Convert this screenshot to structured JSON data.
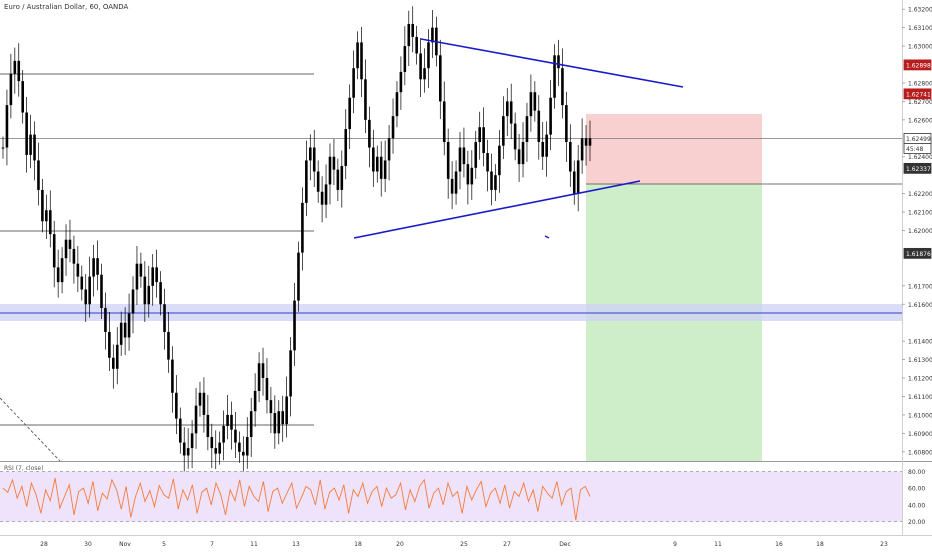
{
  "chart_data": {
    "type": "line",
    "title": "Euro / Australian Dollar, 60, OANDA",
    "instrument": "EURAUD",
    "timeframe": "60",
    "source": "OANDA",
    "x_tick_labels": [
      "28",
      "30",
      "Nov",
      "5",
      "7",
      "11",
      "13",
      "18",
      "20",
      "25",
      "27",
      "Dec",
      "9",
      "11",
      "16",
      "18",
      "23"
    ],
    "y_axis": {
      "range": [
        1.6075,
        1.6325
      ],
      "tick_labels": [
        "1.63200",
        "1.63100",
        "1.63000",
        "1.62800",
        "1.62700",
        "1.62600",
        "1.62400",
        "1.62200",
        "1.62100",
        "1.62000",
        "1.61700",
        "1.61600",
        "1.61400",
        "1.61300",
        "1.61200",
        "1.61100",
        "1.61000",
        "1.60900",
        "1.60800"
      ],
      "tick_values": [
        1.632,
        1.631,
        1.63,
        1.628,
        1.627,
        1.626,
        1.624,
        1.622,
        1.621,
        1.62,
        1.617,
        1.616,
        1.614,
        1.613,
        1.612,
        1.611,
        1.61,
        1.609,
        1.608
      ]
    },
    "price_labels": [
      {
        "text": "1.62898",
        "value": 1.62898,
        "color": "#b71c1c",
        "style": "filled"
      },
      {
        "text": "1.62741",
        "value": 1.62741,
        "color": "#b71c1c",
        "style": "filled"
      },
      {
        "text": "1.62499",
        "value": 1.62499,
        "color": "#333333",
        "style": "outline"
      },
      {
        "text": "45:48",
        "value": 1.62445,
        "color": "#333333",
        "style": "outline"
      },
      {
        "text": "1.62337",
        "value": 1.62337,
        "color": "#333333",
        "style": "filled"
      },
      {
        "text": "1.61876",
        "value": 1.61876,
        "color": "#333333",
        "style": "filled"
      }
    ],
    "price_series": {
      "name": "EURAUD close",
      "values": [
        1.6245,
        1.6268,
        1.6285,
        1.6292,
        1.6281,
        1.6264,
        1.6241,
        1.6252,
        1.6238,
        1.6222,
        1.6205,
        1.6211,
        1.6198,
        1.618,
        1.6172,
        1.6185,
        1.6195,
        1.619,
        1.6182,
        1.6175,
        1.6168,
        1.616,
        1.6175,
        1.6185,
        1.6176,
        1.6158,
        1.6145,
        1.6131,
        1.6125,
        1.6138,
        1.615,
        1.6142,
        1.6155,
        1.6168,
        1.6182,
        1.6175,
        1.616,
        1.617,
        1.618,
        1.6172,
        1.616,
        1.6145,
        1.613,
        1.6112,
        1.6098,
        1.6085,
        1.6078,
        1.6082,
        1.609,
        1.6105,
        1.6112,
        1.61,
        1.6088,
        1.6082,
        1.6079,
        1.6085,
        1.6094,
        1.61,
        1.6092,
        1.6085,
        1.608,
        1.6078,
        1.6088,
        1.6102,
        1.6113,
        1.6128,
        1.612,
        1.6108,
        1.6101,
        1.609,
        1.6102,
        1.6095,
        1.611,
        1.6135,
        1.6162,
        1.6188,
        1.6215,
        1.6238,
        1.6245,
        1.6232,
        1.6221,
        1.6214,
        1.6225,
        1.624,
        1.6233,
        1.6222,
        1.6235,
        1.6255,
        1.6272,
        1.6288,
        1.6302,
        1.6282,
        1.626,
        1.6245,
        1.6232,
        1.624,
        1.6228,
        1.6238,
        1.625,
        1.6262,
        1.6275,
        1.6286,
        1.63,
        1.6312,
        1.6305,
        1.6296,
        1.6282,
        1.6288,
        1.6302,
        1.631,
        1.6295,
        1.627,
        1.6248,
        1.6228,
        1.622,
        1.6232,
        1.6245,
        1.6236,
        1.6225,
        1.6234,
        1.6248,
        1.6256,
        1.6242,
        1.6232,
        1.6222,
        1.623,
        1.6246,
        1.6262,
        1.627,
        1.6258,
        1.6244,
        1.6236,
        1.6248,
        1.6262,
        1.6275,
        1.6265,
        1.6248,
        1.624,
        1.6252,
        1.6272,
        1.6295,
        1.6288,
        1.6268,
        1.6248,
        1.6232,
        1.622,
        1.6238,
        1.625,
        1.6246,
        1.625
      ]
    },
    "rsi": {
      "title": "RSI (7, close)",
      "range": [
        10,
        90
      ],
      "tick_labels": [
        "80.00",
        "60.00",
        "40.00",
        "20.00"
      ],
      "tick_values": [
        80,
        60,
        40,
        20
      ],
      "upper_band": 80,
      "lower_band": 20,
      "values": [
        60,
        55,
        70,
        48,
        62,
        38,
        66,
        52,
        30,
        58,
        45,
        72,
        36,
        50,
        64,
        28,
        56,
        60,
        42,
        68,
        33,
        54,
        47,
        70,
        58,
        35,
        62,
        25,
        50,
        66,
        44,
        57,
        38,
        63,
        52,
        48,
        71,
        35,
        58,
        46,
        64,
        30,
        55,
        60,
        40,
        66,
        52,
        28,
        58,
        45,
        70,
        38,
        62,
        50,
        44,
        68,
        32,
        56,
        60,
        42,
        54,
        66,
        36,
        48,
        62,
        58,
        40,
        70,
        35,
        55,
        60,
        46,
        64,
        30,
        58,
        50,
        66,
        42,
        56,
        62,
        38,
        60,
        48,
        52,
        66,
        34,
        58,
        44,
        62,
        70,
        36,
        54,
        60,
        40,
        66,
        50,
        56,
        30,
        62,
        46,
        58,
        68,
        38,
        54,
        60,
        42,
        64,
        36,
        56,
        50,
        66,
        44,
        58,
        32,
        62,
        54,
        48,
        68,
        40,
        56,
        60,
        22,
        58,
        62,
        50
      ]
    },
    "colors": {
      "candles": "#000000",
      "trendline": "#1a1acc",
      "stop_zone": "#f8c8c8",
      "target_zone": "#c9ecc4",
      "support_band": "#cfd2f5",
      "support_line": "#4c5fd8",
      "rsi_line": "#f47b3a",
      "rsi_fill": "#efe3fb",
      "price_label_red": "#b71c1c",
      "price_label_dark": "#333333"
    }
  }
}
